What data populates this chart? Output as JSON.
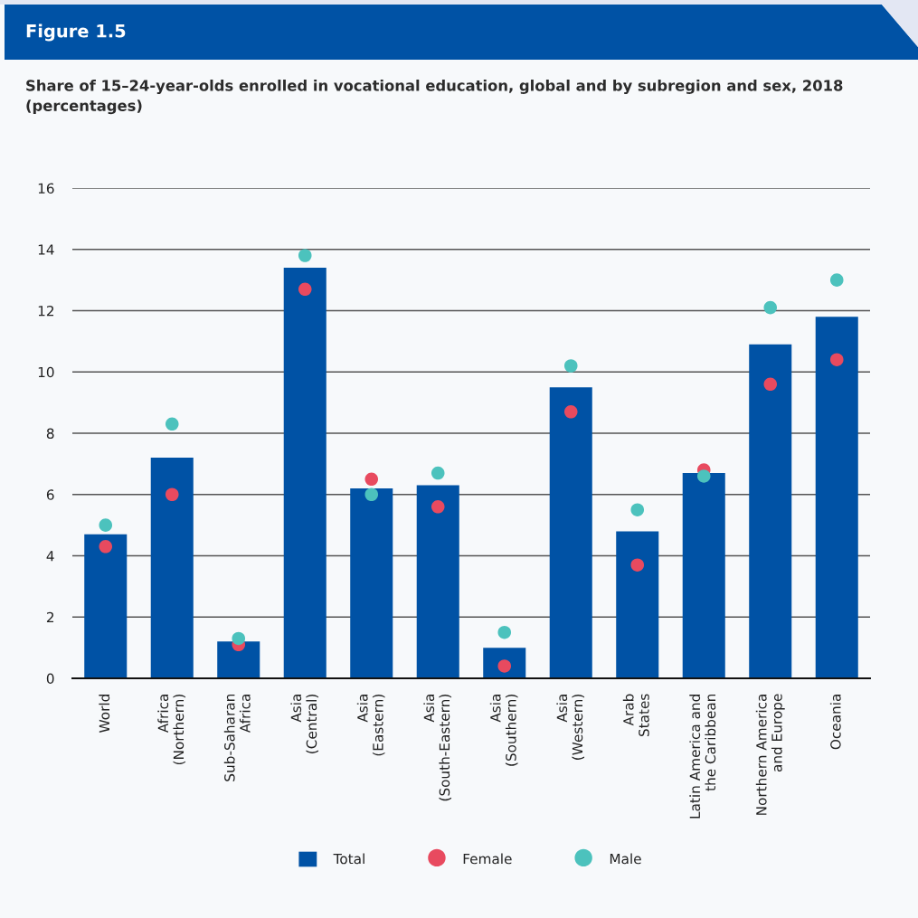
{
  "chart_data": {
    "type": "bar",
    "title": "Figure 1.5",
    "subtitle": "Share of 15–24-year-olds enrolled in vocational education, global and by subregion and sex, 2018 (percentages)",
    "categories": [
      "World",
      "Africa\n(Northern)",
      "Sub-Saharan\nAfrica",
      "Asia\n(Central)",
      "Asia\n(Eastern)",
      "Asia\n(South-Eastern)",
      "Asia\n(Southern)",
      "Asia\n(Western)",
      "Arab\nStates",
      "Latin America and\nthe Caribbean",
      "Northern America\nand Europe",
      "Oceania"
    ],
    "series": [
      {
        "name": "Total",
        "color": "#0052a5",
        "values": [
          4.7,
          7.2,
          1.2,
          13.4,
          6.2,
          6.3,
          1.0,
          9.5,
          4.8,
          6.7,
          10.9,
          11.8
        ]
      },
      {
        "name": "Female",
        "type": "scatter",
        "color": "#e84a5f",
        "values": [
          4.3,
          6.0,
          1.1,
          12.7,
          6.5,
          5.6,
          0.4,
          8.7,
          3.7,
          6.8,
          9.6,
          10.4
        ]
      },
      {
        "name": "Male",
        "type": "scatter",
        "color": "#4cc2bd",
        "values": [
          5.0,
          8.3,
          1.3,
          13.8,
          6.0,
          6.7,
          1.5,
          10.2,
          5.5,
          6.6,
          12.1,
          13.0
        ]
      }
    ],
    "ylim": [
      0,
      16
    ],
    "yticks": [
      0,
      2,
      4,
      6,
      8,
      10,
      12,
      14,
      16
    ],
    "grid": "y",
    "legend": "bottom",
    "marker": "circle"
  }
}
